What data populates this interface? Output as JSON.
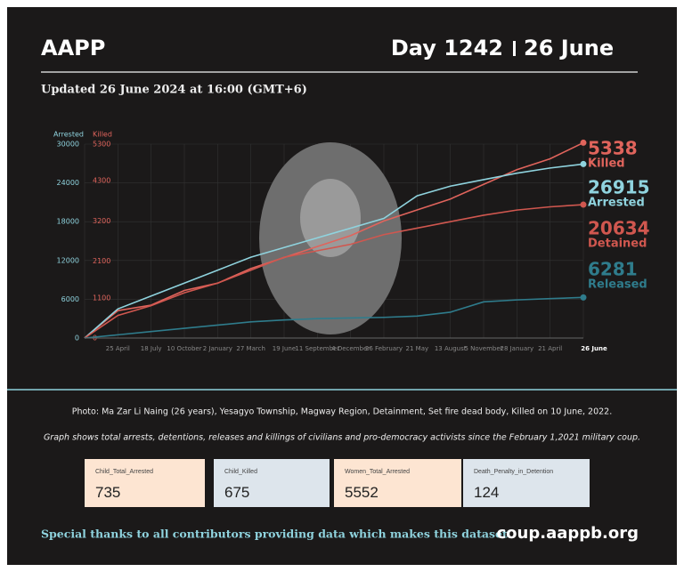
{
  "header": {
    "title": "AAPP",
    "day": "Day 1242",
    "date": "26 June",
    "updated": "Updated 26 June 2024 at 16:00 (GMT+6)"
  },
  "chart_data": {
    "type": "line",
    "y_label": "Arrested",
    "y2_label": "Killed",
    "categories": [
      null,
      "25 April",
      "18 July",
      "10 October",
      "2 January",
      "27 March",
      "19 June",
      "11 September",
      "4 December",
      "26 February",
      "21 May",
      "13 August",
      "5 November",
      "28 January",
      "21 April",
      "26 June"
    ],
    "ylim": [
      0,
      30000
    ],
    "yticks": [
      0,
      6000,
      12000,
      18000,
      24000,
      30000
    ],
    "y2lim": [
      0,
      5300
    ],
    "y2ticks": [
      0,
      1100,
      2100,
      3200,
      4300,
      5300
    ],
    "grid": true,
    "series": [
      {
        "name": "Killed",
        "color": "#e0645c",
        "axis": "y2",
        "values": [
          0,
          750,
          900,
          1300,
          1500,
          1900,
          2200,
          2500,
          2800,
          3200,
          3500,
          3800,
          4200,
          4600,
          4900,
          5338
        ]
      },
      {
        "name": "Arrested",
        "color": "#8fd3de",
        "values": [
          0,
          4500,
          6500,
          8500,
          10500,
          12500,
          14000,
          15500,
          17000,
          18500,
          22000,
          23500,
          24500,
          25500,
          26300,
          26915
        ]
      },
      {
        "name": "Detained",
        "color": "#d0574f",
        "values": [
          0,
          3500,
          5000,
          7000,
          8500,
          10500,
          12500,
          13500,
          14500,
          16000,
          17000,
          18000,
          19000,
          19800,
          20300,
          20634
        ]
      },
      {
        "name": "Released",
        "color": "#2f7c8c",
        "values": [
          0,
          500,
          1000,
          1500,
          2000,
          2500,
          2800,
          3000,
          3100,
          3200,
          3400,
          4000,
          5600,
          5900,
          6100,
          6281
        ]
      }
    ]
  },
  "caption": "Photo: Ma Zar Li Naing (26 years), Yesagyo Township, Magway Region, Detainment, Set fire dead body, Killed on 10 June, 2022.",
  "note": "Graph shows total arrests, detentions, releases and killings of civilians and pro-democracy activists since the February 1,2021 military coup.",
  "stats": [
    {
      "label": "Child_Total_Arrested",
      "value": "735"
    },
    {
      "label": "Child_Killed",
      "value": "675"
    },
    {
      "label": "Women_Total_Arrested",
      "value": "5552"
    },
    {
      "label": "Death_Penalty_in_Detention",
      "value": "124"
    }
  ],
  "footer": {
    "thanks": "Special thanks to all contributors providing data which makes this dataset.",
    "url": "coup.aappb.org"
  }
}
